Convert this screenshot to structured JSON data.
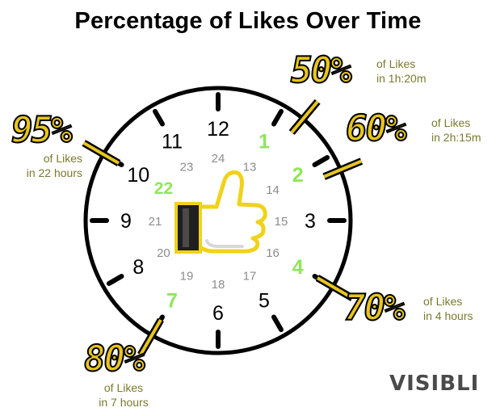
{
  "title": "Percentage of Likes Over Time",
  "brand": "VISIBLI",
  "colors": {
    "accent_yellow": "#e7c51c",
    "callout_text": "#7a7a2f",
    "highlight_green": "#8ee65a",
    "hour_gray": "#8c8c8c"
  },
  "clock": {
    "outer_numbers": [
      "12",
      "1",
      "2",
      "3",
      "4",
      "5",
      "6",
      "7",
      "8",
      "9",
      "10",
      "11"
    ],
    "inner_numbers": [
      "24",
      "13",
      "14",
      "15",
      "16",
      "17",
      "18",
      "19",
      "20",
      "21",
      "22",
      "23"
    ],
    "highlighted_numbers": [
      "1",
      "2",
      "4",
      "7",
      "22"
    ],
    "center_icon": "thumbs-up-icon"
  },
  "callouts": [
    {
      "pct": "50%",
      "line1": "of Likes",
      "line2": "in 1h:20m"
    },
    {
      "pct": "60%",
      "line1": "of Likes",
      "line2": "in 2h:15m"
    },
    {
      "pct": "70%",
      "line1": "of Likes",
      "line2": "in 4 hours"
    },
    {
      "pct": "80%",
      "line1": "of Likes",
      "line2": "in 7 hours"
    },
    {
      "pct": "95%",
      "line1": "of Likes",
      "line2": "in 22 hours"
    }
  ]
}
